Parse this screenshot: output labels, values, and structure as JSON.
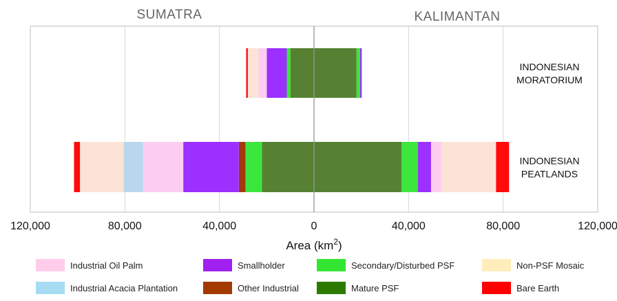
{
  "chart_data": {
    "type": "bar",
    "orientation": "horizontal-diverging",
    "regions": {
      "left": "SUMATRA",
      "right": "KALIMANTAN"
    },
    "xlabel": "Area (km",
    "xlabel_sup": "2",
    "xlabel_suffix": ")",
    "xlim": [
      -120000,
      120000
    ],
    "x_ticks": [
      {
        "value": -120000,
        "label": "120,000"
      },
      {
        "value": -80000,
        "label": "80,000"
      },
      {
        "value": -40000,
        "label": "40,000"
      },
      {
        "value": 0,
        "label": "0"
      },
      {
        "value": 40000,
        "label": "40,000"
      },
      {
        "value": 80000,
        "label": "80,000"
      },
      {
        "value": 120000,
        "label": "120,000"
      }
    ],
    "grid": true,
    "legend_position": "bottom",
    "categories": [
      {
        "key": "oil_palm",
        "name": "Industrial Oil Palm",
        "color": "#FDCDF1"
      },
      {
        "key": "smallholder",
        "name": "Smallholder",
        "color": "#9B30FF"
      },
      {
        "key": "secondary_psf",
        "name": "Secondary/Disturbed PSF",
        "color": "#3CE63C"
      },
      {
        "key": "non_psf_mosaic",
        "name": "Non-PSF Mosaic",
        "color": "#FBE3D5"
      },
      {
        "key": "acacia",
        "name": "Industrial Acacia Plantation",
        "color": "#B9D6EE"
      },
      {
        "key": "other_industrial",
        "name": "Other Industrial",
        "color": "#A23A10"
      },
      {
        "key": "mature_psf",
        "name": "Mature PSF",
        "color": "#568132"
      },
      {
        "key": "bare_earth",
        "name": "Bare Earth",
        "color": "#FF0B0B"
      }
    ],
    "legend_swatch_colors": {
      "oil_palm": "#FFCCEB",
      "smallholder": "#A020F0",
      "secondary_psf": "#33E633",
      "non_psf_mosaic": "#FFEDBC",
      "acacia": "#A6DCF2",
      "other_industrial": "#A33A00",
      "mature_psf": "#2D7A00",
      "bare_earth": "#FF0000"
    },
    "rows": [
      {
        "label_lines": [
          "INDONESIAN",
          "MORATORIUM"
        ],
        "sumatra": [
          {
            "category": "mature_psf",
            "value": 10000
          },
          {
            "category": "secondary_psf",
            "value": 1500
          },
          {
            "category": "smallholder",
            "value": 8500
          },
          {
            "category": "oil_palm",
            "value": 3500
          },
          {
            "category": "non_psf_mosaic",
            "value": 4500
          },
          {
            "category": "bare_earth",
            "value": 700
          }
        ],
        "kalimantan": [
          {
            "category": "mature_psf",
            "value": 18000
          },
          {
            "category": "secondary_psf",
            "value": 1500
          },
          {
            "category": "smallholder",
            "value": 700
          }
        ]
      },
      {
        "label_lines": [
          "INDONESIAN",
          "PEATLANDS"
        ],
        "sumatra": [
          {
            "category": "mature_psf",
            "value": 22000
          },
          {
            "category": "secondary_psf",
            "value": 7000
          },
          {
            "category": "other_industrial",
            "value": 2800
          },
          {
            "category": "smallholder",
            "value": 23500
          },
          {
            "category": "oil_palm",
            "value": 17000
          },
          {
            "category": "acacia",
            "value": 8200
          },
          {
            "category": "non_psf_mosaic",
            "value": 18500
          },
          {
            "category": "bare_earth",
            "value": 2500
          }
        ],
        "kalimantan": [
          {
            "category": "mature_psf",
            "value": 37000
          },
          {
            "category": "secondary_psf",
            "value": 7000
          },
          {
            "category": "smallholder",
            "value": 5500
          },
          {
            "category": "oil_palm",
            "value": 4500
          },
          {
            "category": "non_psf_mosaic",
            "value": 23000
          },
          {
            "category": "bare_earth",
            "value": 5500
          }
        ]
      }
    ]
  }
}
